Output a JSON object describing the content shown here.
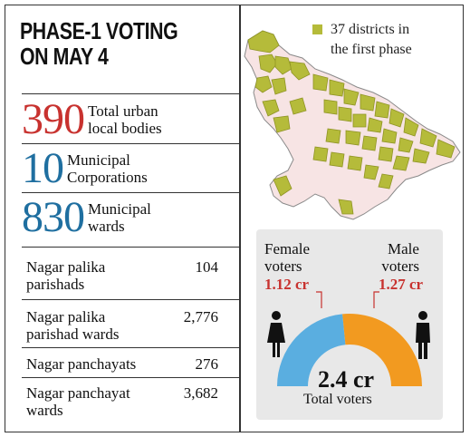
{
  "title": {
    "line1": "PHASE-1 VOTING",
    "line2": "ON MAY 4"
  },
  "stats": [
    {
      "value": "390",
      "label_line1": "Total urban",
      "label_line2": "local bodies",
      "color": "#c8322f"
    },
    {
      "value": "10",
      "label_line1": "Municipal",
      "label_line2": "Corporations",
      "color": "#1f6fa0"
    },
    {
      "value": "830",
      "label_line1": "Municipal",
      "label_line2": "wards",
      "color": "#1f6fa0"
    }
  ],
  "table": [
    {
      "name_line1": "Nagar palika",
      "name_line2": "parishads",
      "value": "104"
    },
    {
      "name_line1": "Nagar palika",
      "name_line2": "parishad wards",
      "value": "2,776"
    },
    {
      "name_line1": "Nagar panchayats",
      "name_line2": "",
      "value": "276"
    },
    {
      "name_line1": "Nagar panchayat",
      "name_line2": "wards",
      "value": "3,682"
    }
  ],
  "map_legend": {
    "line1": "37 districts in",
    "line2": "the first phase",
    "color": "#b5bb3a",
    "base_color": "#f7e4e4"
  },
  "voters": {
    "female": {
      "label_line1": "Female",
      "label_line2": "voters",
      "value": "1.12 cr",
      "color": "#5aaee0"
    },
    "male": {
      "label_line1": "Male",
      "label_line2": "voters",
      "value": "1.27 cr",
      "color": "#f29a20"
    },
    "total": {
      "value": "2.4 cr",
      "label": "Total voters"
    }
  }
}
